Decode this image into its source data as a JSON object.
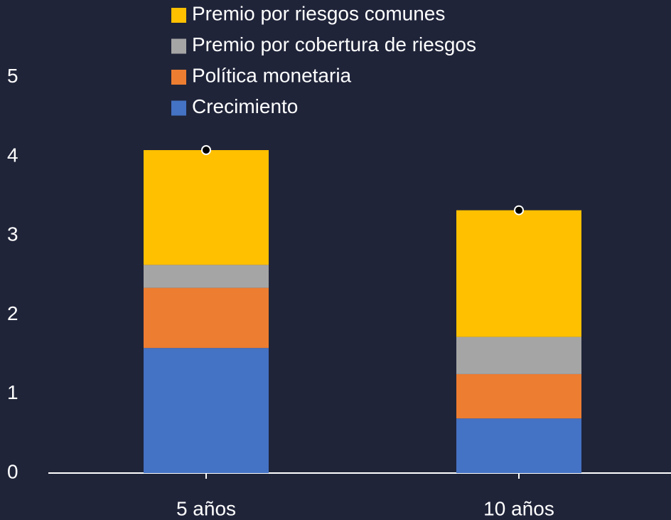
{
  "chart_data": {
    "type": "stacked_bar",
    "categories": [
      "5 años",
      "10 años"
    ],
    "series": [
      {
        "name": "Crecimiento",
        "color": "#4472c4",
        "values": [
          1.58,
          0.69
        ]
      },
      {
        "name": "Política monetaria",
        "color": "#ed7d31",
        "values": [
          0.76,
          0.56
        ]
      },
      {
        "name": "Premio por cobertura de riesgos",
        "color": "#a5a5a5",
        "values": [
          0.29,
          0.47
        ]
      },
      {
        "name": "Premio por riesgos comunes",
        "color": "#ffc000",
        "values": [
          1.45,
          1.6
        ]
      }
    ],
    "ylim": [
      0,
      5.5
    ],
    "yticks": [
      0,
      1,
      2,
      3,
      4,
      5
    ],
    "grid": false,
    "legend": "top"
  }
}
